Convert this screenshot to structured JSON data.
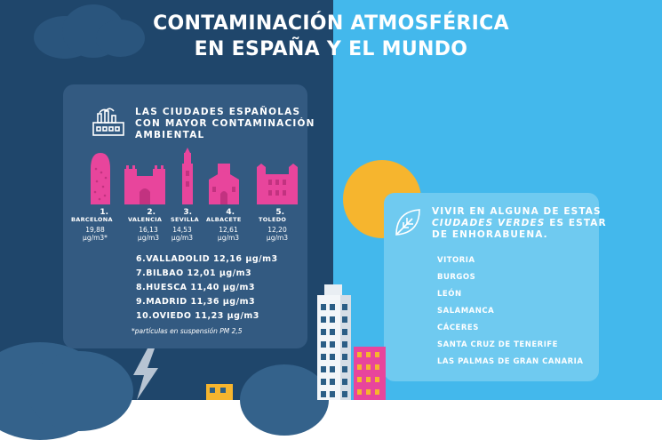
{
  "title": {
    "line1": "CONTAMINACIÓN ATMOSFÉRICA",
    "line2": "EN ESPAÑA Y EL MUNDO"
  },
  "left_panel": {
    "header": [
      "LAS CIUDADES ESPAÑOLAS",
      "CON MAYOR CONTAMINACIÓN",
      "AMBIENTAL"
    ],
    "top_cities": [
      {
        "rank": "1.",
        "name": "BARCELONA",
        "value": "19,88",
        "unit": "µg/m3*"
      },
      {
        "rank": "2.",
        "name": "VALENCIA",
        "value": "16,13",
        "unit": "µg/m3"
      },
      {
        "rank": "3.",
        "name": "SEVILLA",
        "value": "14,53",
        "unit": "µg/m3"
      },
      {
        "rank": "4.",
        "name": "ALBACETE",
        "value": "12,61",
        "unit": "µg/m3"
      },
      {
        "rank": "5.",
        "name": "TOLEDO",
        "value": "12,20",
        "unit": "µg/m3"
      }
    ],
    "other_cities": [
      "6.VALLADOLID 12,16 µg/m3",
      "7.BILBAO 12,01 µg/m3",
      "8.HUESCA 11,40 µg/m3",
      "9.MADRID 11,36 µg/m3",
      "10.OVIEDO 11,23 µg/m3"
    ],
    "footnote": "*partículas en suspensión PM 2,5"
  },
  "right_panel": {
    "header_part1": "VIVIR EN ALGUNA DE ESTAS",
    "header_em": "CIUDADES VERDES",
    "header_part2": "ES ESTAR",
    "header_line3": "DE ENHORABUENA.",
    "green_cities": [
      "VITORIA",
      "BURGOS",
      "LEÓN",
      "SALAMANCA",
      "CÁCERES",
      "SANTA CRUZ DE TENERIFE",
      "LAS PALMAS DE GRAN CANARIA"
    ]
  },
  "colors": {
    "left_bg": "#1f466b",
    "right_bg": "#43b8ec",
    "accent_pink": "#e8459c",
    "sun": "#f6b52e"
  }
}
